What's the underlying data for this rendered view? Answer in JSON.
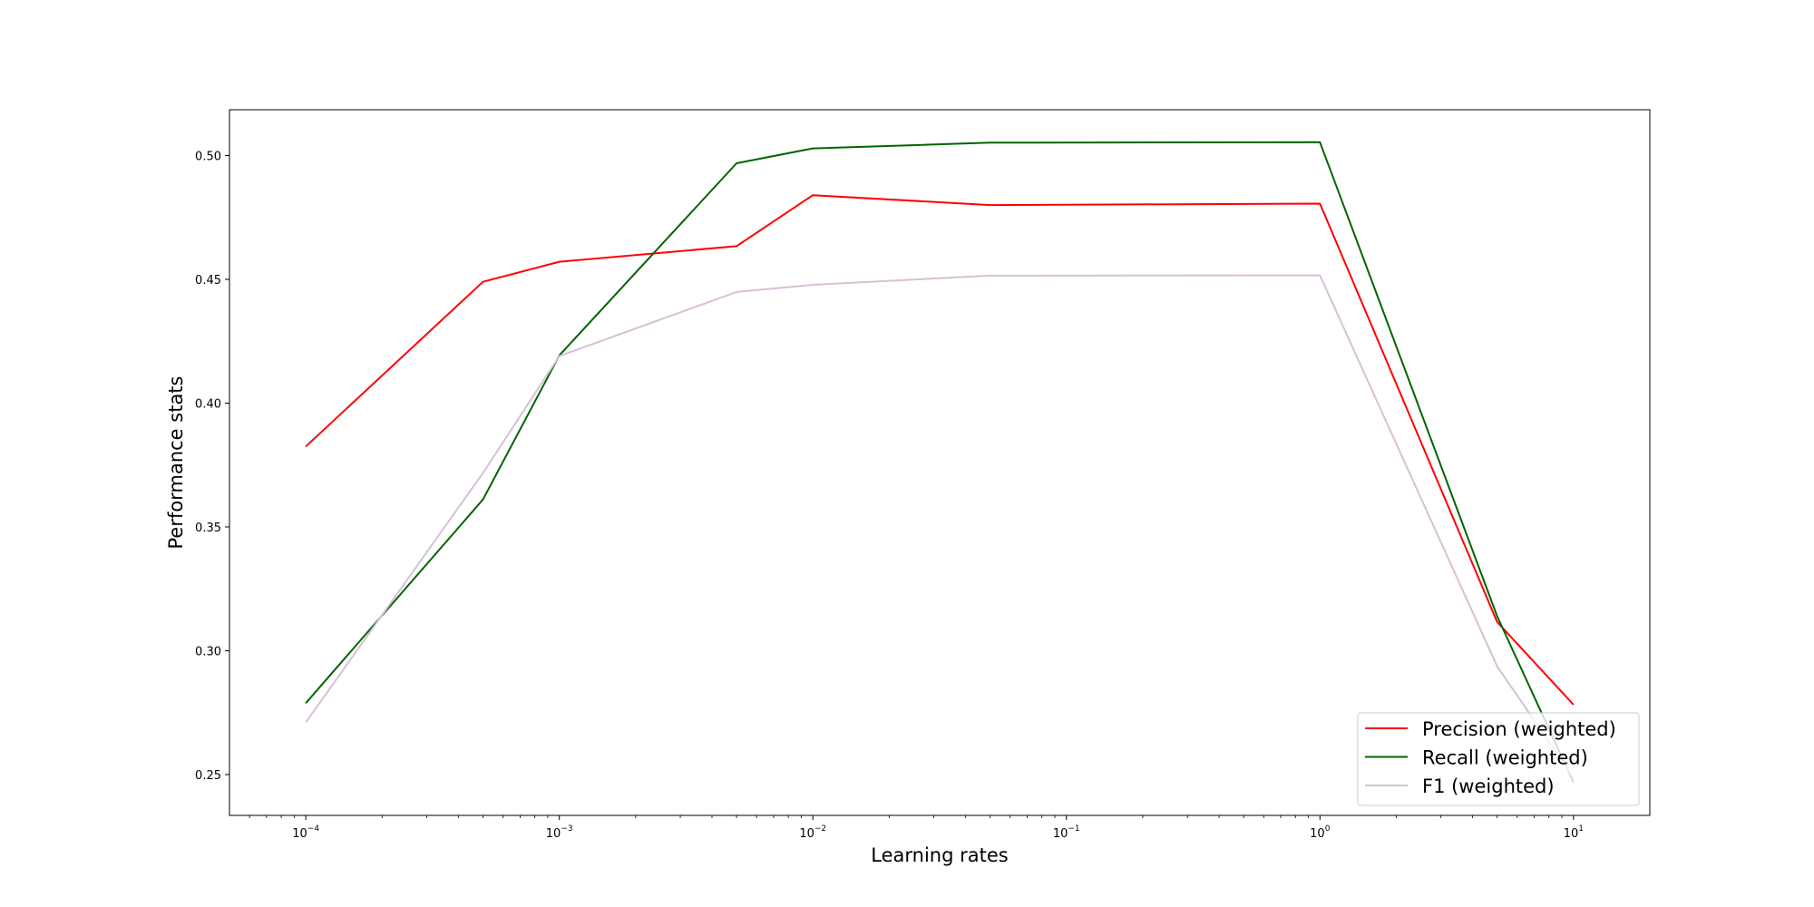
{
  "chart_data": {
    "type": "line",
    "title": "",
    "xlabel": "Learning rates",
    "ylabel": "Performance stats",
    "xscale": "log",
    "xlim": [
      5e-05,
      20
    ],
    "ylim": [
      0.2335,
      0.5185
    ],
    "x": [
      0.0001,
      0.0005,
      0.001,
      0.005,
      0.01,
      0.05,
      1,
      5,
      10
    ],
    "x_ticks": [
      {
        "value": 0.0001,
        "base": "10",
        "exp": "−4"
      },
      {
        "value": 0.001,
        "base": "10",
        "exp": "−3"
      },
      {
        "value": 0.01,
        "base": "10",
        "exp": "−2"
      },
      {
        "value": 0.1,
        "base": "10",
        "exp": "−1"
      },
      {
        "value": 1,
        "base": "10",
        "exp": "0"
      },
      {
        "value": 10,
        "base": "10",
        "exp": "1"
      }
    ],
    "y_ticks": [
      0.25,
      0.3,
      0.35,
      0.4,
      0.45,
      0.5
    ],
    "y_tick_labels": [
      "0.25",
      "0.30",
      "0.35",
      "0.40",
      "0.45",
      "0.50"
    ],
    "grid": false,
    "legend_position": "bottom-right",
    "series": [
      {
        "name": "Precision (weighted)",
        "color": "#ff0000",
        "values": [
          0.3825,
          0.449,
          0.4571,
          0.4634,
          0.484,
          0.48,
          0.4806,
          0.3116,
          0.2782
        ]
      },
      {
        "name": "Recall (weighted)",
        "color": "#006400",
        "values": [
          0.2788,
          0.3611,
          0.4193,
          0.4969,
          0.5029,
          0.5052,
          0.5054,
          0.3139,
          0.2468
        ]
      },
      {
        "name": "F1 (weighted)",
        "color": "#d8bfd8",
        "values": [
          0.271,
          0.3718,
          0.419,
          0.4449,
          0.4478,
          0.4515,
          0.4516,
          0.2937,
          0.2487
        ]
      }
    ]
  }
}
